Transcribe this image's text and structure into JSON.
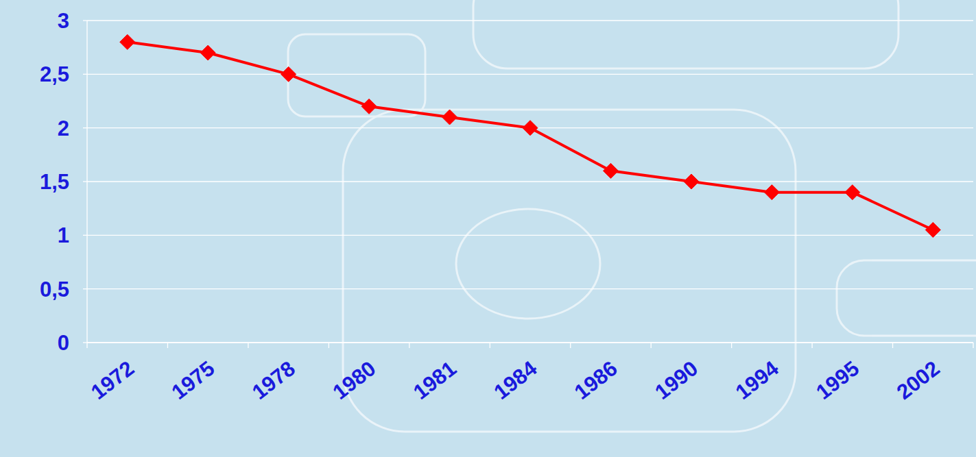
{
  "chart_data": {
    "type": "line",
    "categories": [
      "1972",
      "1975",
      "1978",
      "1980",
      "1981",
      "1984",
      "1986",
      "1990",
      "1994",
      "1995",
      "2002"
    ],
    "values": [
      2.8,
      2.7,
      2.5,
      2.2,
      2.1,
      2.0,
      1.6,
      1.5,
      1.4,
      1.4,
      1.05
    ],
    "color": "#ff0000",
    "marker": "diamond",
    "ylim": [
      0,
      3
    ],
    "yticks": [
      0,
      {
        "value": 0.5,
        "label": "0,5"
      },
      1,
      {
        "value": 1.5,
        "label": "1,5"
      },
      2,
      {
        "value": 2.5,
        "label": "2,5"
      },
      3
    ],
    "grid": true
  }
}
